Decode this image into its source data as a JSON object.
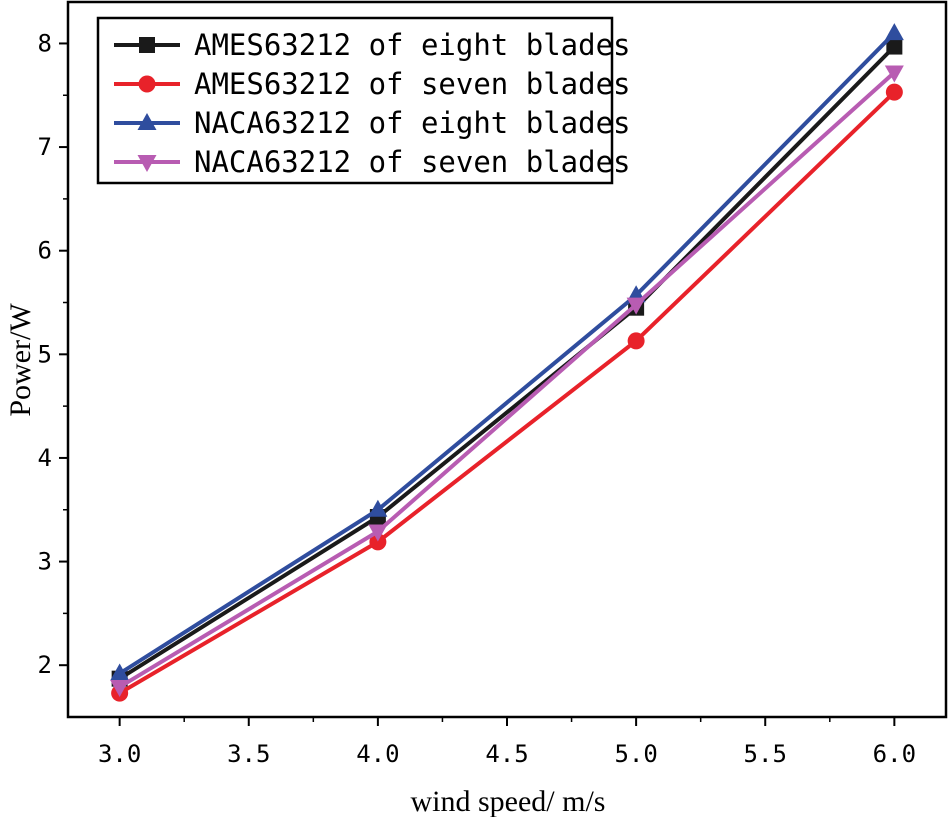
{
  "chart_data": {
    "type": "line",
    "title": "",
    "xlabel": "wind speed/ m/s",
    "ylabel": "Power/W",
    "x": [
      3.0,
      4.0,
      5.0,
      6.0
    ],
    "xlim": [
      2.8,
      6.2
    ],
    "ylim": [
      1.5,
      8.4
    ],
    "xticks": [
      3.0,
      3.5,
      4.0,
      4.5,
      5.0,
      5.5,
      6.0
    ],
    "xtick_labels": [
      "3.0",
      "3.5",
      "4.0",
      "4.5",
      "5.0",
      "5.5",
      "6.0"
    ],
    "yticks": [
      2,
      3,
      4,
      5,
      6,
      7,
      8
    ],
    "ytick_labels": [
      "2",
      "3",
      "4",
      "5",
      "6",
      "7",
      "8"
    ],
    "grid": false,
    "legend_position": "top-left",
    "series": [
      {
        "name": "AMES63212 of eight blades",
        "values": [
          1.87,
          3.43,
          5.45,
          7.97
        ],
        "color": "#1a1a1a",
        "marker": "square"
      },
      {
        "name": "AMES63212 of seven blades",
        "values": [
          1.73,
          3.19,
          5.13,
          7.53
        ],
        "color": "#e8222a",
        "marker": "circle"
      },
      {
        "name": "NACA63212 of eight blades",
        "values": [
          1.92,
          3.5,
          5.57,
          8.1
        ],
        "color": "#2f4d9e",
        "marker": "triangle-up"
      },
      {
        "name": "NACA63212 of seven blades",
        "values": [
          1.79,
          3.29,
          5.48,
          7.72
        ],
        "color": "#b85cb2",
        "marker": "triangle-down"
      }
    ]
  }
}
